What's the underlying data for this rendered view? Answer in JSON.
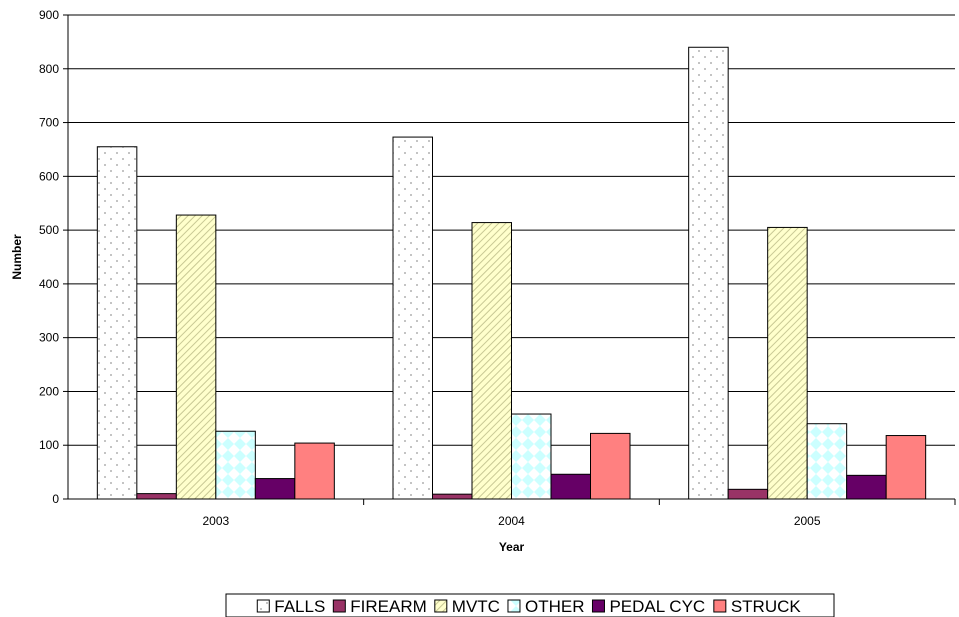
{
  "chart_data": {
    "type": "bar",
    "title": "",
    "xlabel": "Year",
    "ylabel": "Number",
    "categories": [
      "2003",
      "2004",
      "2005"
    ],
    "ylim": [
      0,
      900
    ],
    "yticks": [
      0,
      100,
      200,
      300,
      400,
      500,
      600,
      700,
      800,
      900
    ],
    "grid": true,
    "legend_position": "bottom",
    "series": [
      {
        "name": "FALLS",
        "values": [
          655,
          673,
          840
        ],
        "color": "#ffffff",
        "pattern": "dots"
      },
      {
        "name": "FIREARM",
        "values": [
          10,
          9,
          18
        ],
        "color": "#993366",
        "pattern": "solid"
      },
      {
        "name": "MVTC",
        "values": [
          528,
          514,
          505
        ],
        "color": "#ffffcc",
        "pattern": "diagonal-stripes"
      },
      {
        "name": "OTHER",
        "values": [
          126,
          158,
          140
        ],
        "color": "#ccffff",
        "pattern": "diamonds"
      },
      {
        "name": "PEDAL CYC",
        "values": [
          38,
          46,
          44
        ],
        "color": "#660066",
        "pattern": "solid"
      },
      {
        "name": "STRUCK",
        "values": [
          104,
          122,
          118
        ],
        "color": "#ff8080",
        "pattern": "solid"
      }
    ]
  }
}
